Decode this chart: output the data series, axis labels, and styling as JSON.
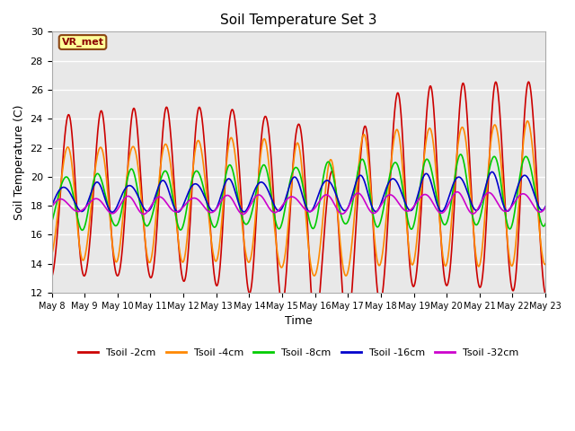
{
  "title": "Soil Temperature Set 3",
  "xlabel": "Time",
  "ylabel": "Soil Temperature (C)",
  "ylim": [
    12,
    30
  ],
  "yticks": [
    12,
    14,
    16,
    18,
    20,
    22,
    24,
    26,
    28,
    30
  ],
  "fig_bg_color": "#ffffff",
  "plot_bg_color": "#e8e8e8",
  "grid_color": "#ffffff",
  "annotation_text": "VR_met",
  "annotation_box_color": "#ffff99",
  "annotation_border_color": "#8B4513",
  "series": [
    {
      "label": "Tsoil -2cm",
      "color": "#cc0000",
      "lw": 1.2
    },
    {
      "label": "Tsoil -4cm",
      "color": "#ff8800",
      "lw": 1.2
    },
    {
      "label": "Tsoil -8cm",
      "color": "#00cc00",
      "lw": 1.2
    },
    {
      "label": "Tsoil -16cm",
      "color": "#0000cc",
      "lw": 1.2
    },
    {
      "label": "Tsoil -32cm",
      "color": "#cc00cc",
      "lw": 1.2
    }
  ],
  "x_tick_labels": [
    "May 8",
    "May 9",
    "May 10",
    "May 11",
    "May 12",
    "May 13",
    "May 14",
    "May 15",
    "May 16",
    "May 17",
    "May 18",
    "May 19",
    "May 20",
    "May 21",
    "May 22",
    "May 23"
  ]
}
